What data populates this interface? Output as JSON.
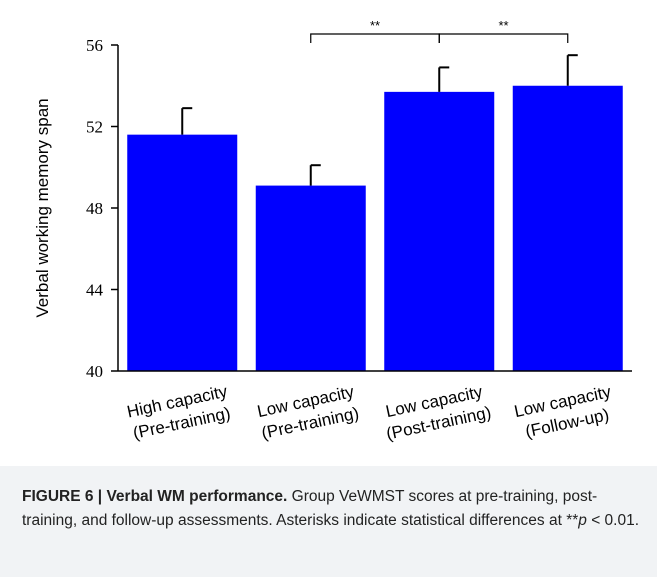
{
  "chart_data": {
    "type": "bar",
    "categories": [
      [
        "High capacity",
        "(Pre-training)"
      ],
      [
        "Low capacity",
        "(Pre-training)"
      ],
      [
        "Low capacity",
        "(Post-training)"
      ],
      [
        "Low capacity",
        "(Follow-up)"
      ]
    ],
    "values": [
      51.6,
      49.1,
      53.7,
      54.0
    ],
    "errors": [
      1.3,
      1.0,
      1.2,
      1.5
    ],
    "ylabel": "Verbal working memory span",
    "xlabel": "",
    "ylim": [
      40,
      56
    ],
    "yticks": [
      40,
      44,
      48,
      52,
      56
    ],
    "bar_color": "#0000ff",
    "grid": false,
    "significance": [
      {
        "from": 1,
        "to": 2,
        "label": "**"
      },
      {
        "from": 2,
        "to": 3,
        "label": "**"
      }
    ]
  },
  "caption": {
    "label": "FIGURE 6 |",
    "title": "Verbal WM performance.",
    "text_before_p": "Group VeWMST scores at pre-training, post-training, and follow-up assessments. Asterisks indicate statistical differences at **",
    "p_symbol": "p",
    "text_after_p": " < 0.01."
  }
}
